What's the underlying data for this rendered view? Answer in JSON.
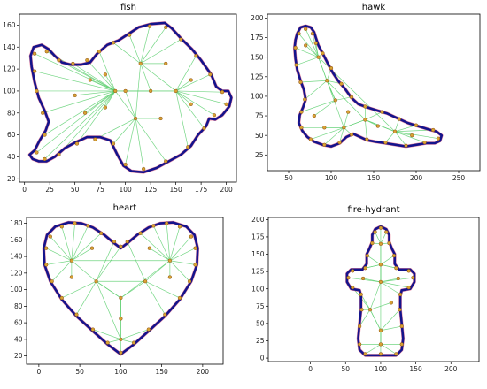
{
  "chart_data": [
    {
      "type": "scatter",
      "title": "fish",
      "xlim": [
        -5,
        210
      ],
      "ylim": [
        17,
        170
      ],
      "xticks": [
        0,
        25,
        50,
        75,
        100,
        125,
        150,
        175,
        200
      ],
      "yticks": [
        20,
        40,
        60,
        80,
        100,
        120,
        140,
        160
      ],
      "outline": [
        [
          5,
          42
        ],
        [
          10,
          46
        ],
        [
          15,
          55
        ],
        [
          21,
          64
        ],
        [
          24,
          72
        ],
        [
          20,
          82
        ],
        [
          14,
          94
        ],
        [
          10,
          108
        ],
        [
          7,
          122
        ],
        [
          6,
          132
        ],
        [
          9,
          140
        ],
        [
          17,
          142
        ],
        [
          24,
          138
        ],
        [
          30,
          132
        ],
        [
          37,
          126
        ],
        [
          46,
          124
        ],
        [
          56,
          124
        ],
        [
          65,
          126
        ],
        [
          72,
          134
        ],
        [
          82,
          142
        ],
        [
          93,
          146
        ],
        [
          103,
          152
        ],
        [
          113,
          158
        ],
        [
          125,
          161
        ],
        [
          139,
          162
        ],
        [
          146,
          157
        ],
        [
          156,
          147
        ],
        [
          166,
          138
        ],
        [
          175,
          128
        ],
        [
          185,
          115
        ],
        [
          190,
          104
        ],
        [
          196,
          100
        ],
        [
          202,
          100
        ],
        [
          205,
          94
        ],
        [
          203,
          86
        ],
        [
          196,
          78
        ],
        [
          189,
          74
        ],
        [
          183,
          75
        ],
        [
          180,
          68
        ],
        [
          172,
          60
        ],
        [
          165,
          50
        ],
        [
          155,
          42
        ],
        [
          143,
          36
        ],
        [
          131,
          30
        ],
        [
          118,
          26
        ],
        [
          106,
          27
        ],
        [
          98,
          32
        ],
        [
          92,
          42
        ],
        [
          85,
          55
        ],
        [
          75,
          58
        ],
        [
          62,
          58
        ],
        [
          50,
          53
        ],
        [
          40,
          48
        ],
        [
          30,
          40
        ],
        [
          22,
          36
        ],
        [
          14,
          36
        ],
        [
          8,
          38
        ],
        [
          5,
          42
        ]
      ],
      "hubs": [
        [
          125,
          100
        ],
        [
          100,
          100
        ],
        [
          150,
          100
        ],
        [
          115,
          125
        ],
        [
          110,
          75
        ],
        [
          90,
          100
        ]
      ],
      "points": [
        [
          12,
          44
        ],
        [
          20,
          60
        ],
        [
          18,
          80
        ],
        [
          12,
          100
        ],
        [
          10,
          118
        ],
        [
          10,
          134
        ],
        [
          22,
          136
        ],
        [
          34,
          128
        ],
        [
          48,
          125
        ],
        [
          62,
          128
        ],
        [
          74,
          136
        ],
        [
          88,
          144
        ],
        [
          104,
          151
        ],
        [
          124,
          159
        ],
        [
          140,
          158
        ],
        [
          155,
          147
        ],
        [
          170,
          132
        ],
        [
          184,
          115
        ],
        [
          196,
          99
        ],
        [
          200,
          88
        ],
        [
          188,
          78
        ],
        [
          178,
          66
        ],
        [
          162,
          49
        ],
        [
          140,
          36
        ],
        [
          118,
          29
        ],
        [
          100,
          33
        ],
        [
          88,
          52
        ],
        [
          70,
          56
        ],
        [
          52,
          52
        ],
        [
          34,
          42
        ],
        [
          20,
          38
        ],
        [
          125,
          100
        ],
        [
          100,
          100
        ],
        [
          150,
          100
        ],
        [
          115,
          125
        ],
        [
          110,
          75
        ],
        [
          90,
          100
        ],
        [
          60,
          80
        ],
        [
          50,
          96
        ],
        [
          65,
          110
        ],
        [
          140,
          125
        ],
        [
          135,
          75
        ],
        [
          165,
          110
        ],
        [
          165,
          88
        ],
        [
          80,
          115
        ],
        [
          80,
          85
        ]
      ]
    },
    {
      "type": "scatter",
      "title": "hawk",
      "xlim": [
        25,
        275
      ],
      "ylim": [
        5,
        205
      ],
      "xticks": [
        50,
        100,
        150,
        200,
        250
      ],
      "yticks": [
        25,
        50,
        75,
        100,
        125,
        150,
        175,
        200
      ],
      "outline": [
        [
          60,
          180
        ],
        [
          64,
          188
        ],
        [
          70,
          190
        ],
        [
          76,
          188
        ],
        [
          80,
          182
        ],
        [
          82,
          175
        ],
        [
          85,
          165
        ],
        [
          90,
          155
        ],
        [
          96,
          142
        ],
        [
          102,
          130
        ],
        [
          108,
          120
        ],
        [
          116,
          110
        ],
        [
          124,
          98
        ],
        [
          132,
          90
        ],
        [
          142,
          86
        ],
        [
          154,
          82
        ],
        [
          166,
          78
        ],
        [
          178,
          72
        ],
        [
          190,
          66
        ],
        [
          202,
          62
        ],
        [
          214,
          58
        ],
        [
          224,
          55
        ],
        [
          230,
          50
        ],
        [
          228,
          43
        ],
        [
          222,
          40
        ],
        [
          212,
          40
        ],
        [
          200,
          38
        ],
        [
          188,
          36
        ],
        [
          176,
          38
        ],
        [
          164,
          40
        ],
        [
          152,
          42
        ],
        [
          142,
          44
        ],
        [
          134,
          48
        ],
        [
          126,
          52
        ],
        [
          118,
          48
        ],
        [
          110,
          40
        ],
        [
          100,
          36
        ],
        [
          90,
          38
        ],
        [
          80,
          42
        ],
        [
          72,
          48
        ],
        [
          66,
          56
        ],
        [
          62,
          66
        ],
        [
          63,
          76
        ],
        [
          67,
          86
        ],
        [
          70,
          96
        ],
        [
          68,
          108
        ],
        [
          64,
          120
        ],
        [
          60,
          134
        ],
        [
          58,
          148
        ],
        [
          57,
          162
        ],
        [
          58,
          172
        ],
        [
          60,
          180
        ]
      ],
      "hubs": [
        [
          105,
          95
        ],
        [
          95,
          120
        ],
        [
          140,
          70
        ],
        [
          175,
          55
        ],
        [
          85,
          150
        ],
        [
          115,
          60
        ]
      ],
      "points": [
        [
          62,
          180
        ],
        [
          70,
          186
        ],
        [
          78,
          180
        ],
        [
          82,
          168
        ],
        [
          90,
          155
        ],
        [
          100,
          136
        ],
        [
          112,
          116
        ],
        [
          124,
          99
        ],
        [
          140,
          87
        ],
        [
          160,
          80
        ],
        [
          180,
          71
        ],
        [
          200,
          63
        ],
        [
          220,
          57
        ],
        [
          226,
          46
        ],
        [
          210,
          41
        ],
        [
          188,
          37
        ],
        [
          164,
          41
        ],
        [
          142,
          45
        ],
        [
          124,
          51
        ],
        [
          110,
          41
        ],
        [
          92,
          38
        ],
        [
          76,
          45
        ],
        [
          65,
          60
        ],
        [
          65,
          80
        ],
        [
          69,
          96
        ],
        [
          64,
          118
        ],
        [
          59,
          140
        ],
        [
          58,
          162
        ],
        [
          105,
          95
        ],
        [
          95,
          120
        ],
        [
          140,
          70
        ],
        [
          175,
          55
        ],
        [
          85,
          150
        ],
        [
          115,
          60
        ],
        [
          80,
          75
        ],
        [
          120,
          80
        ],
        [
          195,
          50
        ],
        [
          155,
          62
        ],
        [
          70,
          165
        ],
        [
          92,
          60
        ]
      ]
    },
    {
      "type": "scatter",
      "title": "heart",
      "xlim": [
        -15,
        225
      ],
      "ylim": [
        10,
        187
      ],
      "xticks": [
        0,
        50,
        100,
        150,
        200
      ],
      "yticks": [
        20,
        40,
        60,
        80,
        100,
        120,
        140,
        160,
        180
      ],
      "outline": [
        [
          100,
          22
        ],
        [
          84,
          34
        ],
        [
          66,
          50
        ],
        [
          46,
          68
        ],
        [
          28,
          88
        ],
        [
          14,
          110
        ],
        [
          7,
          130
        ],
        [
          6,
          150
        ],
        [
          10,
          166
        ],
        [
          20,
          176
        ],
        [
          36,
          181
        ],
        [
          52,
          180
        ],
        [
          66,
          175
        ],
        [
          80,
          166
        ],
        [
          92,
          156
        ],
        [
          100,
          150
        ],
        [
          108,
          156
        ],
        [
          120,
          166
        ],
        [
          134,
          175
        ],
        [
          148,
          180
        ],
        [
          164,
          181
        ],
        [
          180,
          176
        ],
        [
          190,
          166
        ],
        [
          194,
          150
        ],
        [
          193,
          130
        ],
        [
          186,
          110
        ],
        [
          172,
          88
        ],
        [
          154,
          68
        ],
        [
          134,
          50
        ],
        [
          116,
          34
        ],
        [
          100,
          22
        ]
      ],
      "hubs": [
        [
          40,
          135
        ],
        [
          160,
          135
        ],
        [
          100,
          90
        ],
        [
          100,
          40
        ],
        [
          70,
          110
        ],
        [
          130,
          110
        ]
      ],
      "points": [
        [
          100,
          24
        ],
        [
          84,
          36
        ],
        [
          66,
          52
        ],
        [
          46,
          70
        ],
        [
          28,
          90
        ],
        [
          16,
          110
        ],
        [
          9,
          130
        ],
        [
          9,
          150
        ],
        [
          14,
          164
        ],
        [
          28,
          176
        ],
        [
          44,
          180
        ],
        [
          60,
          177
        ],
        [
          76,
          168
        ],
        [
          92,
          158
        ],
        [
          100,
          152
        ],
        [
          108,
          158
        ],
        [
          124,
          168
        ],
        [
          140,
          177
        ],
        [
          156,
          180
        ],
        [
          172,
          176
        ],
        [
          186,
          164
        ],
        [
          191,
          150
        ],
        [
          191,
          130
        ],
        [
          184,
          110
        ],
        [
          172,
          90
        ],
        [
          154,
          70
        ],
        [
          134,
          52
        ],
        [
          116,
          36
        ],
        [
          40,
          135
        ],
        [
          160,
          135
        ],
        [
          100,
          90
        ],
        [
          100,
          40
        ],
        [
          70,
          110
        ],
        [
          130,
          110
        ],
        [
          100,
          65
        ],
        [
          40,
          115
        ],
        [
          160,
          115
        ],
        [
          65,
          150
        ],
        [
          135,
          150
        ]
      ]
    },
    {
      "type": "scatter",
      "title": "fire-hydrant",
      "xlim": [
        -60,
        240
      ],
      "ylim": [
        -5,
        203
      ],
      "xticks": [
        0,
        50,
        100,
        150,
        200
      ],
      "yticks": [
        0,
        25,
        50,
        75,
        100,
        125,
        150,
        175,
        200
      ],
      "outline": [
        [
          78,
          4
        ],
        [
          70,
          12
        ],
        [
          68,
          28
        ],
        [
          70,
          50
        ],
        [
          72,
          70
        ],
        [
          72,
          90
        ],
        [
          70,
          98
        ],
        [
          58,
          100
        ],
        [
          52,
          110
        ],
        [
          52,
          122
        ],
        [
          58,
          128
        ],
        [
          74,
          128
        ],
        [
          80,
          136
        ],
        [
          80,
          150
        ],
        [
          84,
          158
        ],
        [
          88,
          168
        ],
        [
          88,
          178
        ],
        [
          92,
          186
        ],
        [
          100,
          190
        ],
        [
          108,
          186
        ],
        [
          112,
          178
        ],
        [
          112,
          168
        ],
        [
          116,
          158
        ],
        [
          120,
          150
        ],
        [
          120,
          136
        ],
        [
          126,
          128
        ],
        [
          142,
          128
        ],
        [
          148,
          122
        ],
        [
          148,
          110
        ],
        [
          142,
          100
        ],
        [
          130,
          98
        ],
        [
          128,
          90
        ],
        [
          128,
          70
        ],
        [
          130,
          50
        ],
        [
          132,
          28
        ],
        [
          130,
          12
        ],
        [
          122,
          4
        ],
        [
          78,
          4
        ]
      ],
      "hubs": [
        [
          100,
          135
        ],
        [
          100,
          110
        ],
        [
          85,
          70
        ],
        [
          100,
          40
        ],
        [
          100,
          20
        ],
        [
          100,
          165
        ]
      ],
      "points": [
        [
          78,
          6
        ],
        [
          70,
          20
        ],
        [
          70,
          46
        ],
        [
          73,
          70
        ],
        [
          72,
          92
        ],
        [
          60,
          102
        ],
        [
          54,
          116
        ],
        [
          60,
          126
        ],
        [
          78,
          130
        ],
        [
          81,
          148
        ],
        [
          88,
          166
        ],
        [
          92,
          182
        ],
        [
          100,
          188
        ],
        [
          108,
          182
        ],
        [
          112,
          166
        ],
        [
          119,
          148
        ],
        [
          122,
          130
        ],
        [
          140,
          126
        ],
        [
          146,
          116
        ],
        [
          140,
          102
        ],
        [
          128,
          92
        ],
        [
          127,
          70
        ],
        [
          130,
          46
        ],
        [
          130,
          20
        ],
        [
          122,
          6
        ],
        [
          100,
          135
        ],
        [
          100,
          110
        ],
        [
          85,
          70
        ],
        [
          100,
          40
        ],
        [
          100,
          20
        ],
        [
          100,
          165
        ],
        [
          100,
          6
        ],
        [
          75,
          115
        ],
        [
          125,
          115
        ],
        [
          115,
          80
        ]
      ]
    }
  ]
}
